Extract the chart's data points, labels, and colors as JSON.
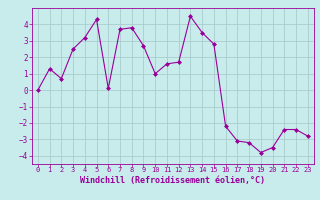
{
  "x": [
    0,
    1,
    2,
    3,
    4,
    5,
    6,
    7,
    8,
    9,
    10,
    11,
    12,
    13,
    14,
    15,
    16,
    17,
    18,
    19,
    20,
    21,
    22,
    23
  ],
  "y": [
    0.0,
    1.3,
    0.7,
    2.5,
    3.2,
    4.3,
    0.1,
    3.7,
    3.8,
    2.7,
    1.0,
    1.6,
    1.7,
    4.5,
    3.5,
    2.8,
    -2.2,
    -3.1,
    -3.2,
    -3.8,
    -3.5,
    -2.4,
    -2.4,
    -2.8
  ],
  "line_color": "#990099",
  "marker": "D",
  "marker_size": 2.0,
  "xlabel": "Windchill (Refroidissement éolien,°C)",
  "ylim": [
    -4.5,
    5.0
  ],
  "xlim": [
    -0.5,
    23.5
  ],
  "yticks": [
    -4,
    -3,
    -2,
    -1,
    0,
    1,
    2,
    3,
    4
  ],
  "xticks": [
    0,
    1,
    2,
    3,
    4,
    5,
    6,
    7,
    8,
    9,
    10,
    11,
    12,
    13,
    14,
    15,
    16,
    17,
    18,
    19,
    20,
    21,
    22,
    23
  ],
  "bg_color": "#c8ecec",
  "grid_color": "#aacccc",
  "tick_color": "#990099",
  "label_color": "#990099",
  "spine_color": "#990099"
}
